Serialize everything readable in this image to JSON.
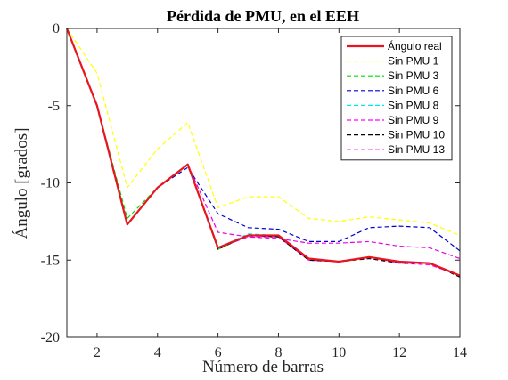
{
  "chart_data": {
    "type": "line",
    "title": "Pérdida de PMU, en el EEH",
    "xlabel": "Número de barras",
    "ylabel": "Ángulo [grados]",
    "xlim": [
      1,
      14
    ],
    "ylim": [
      -20,
      0
    ],
    "xticks": [
      2,
      4,
      6,
      8,
      10,
      12,
      14
    ],
    "yticks": [
      0,
      -5,
      -10,
      -15,
      -20
    ],
    "grid": false,
    "legend_position": "top-right",
    "x": [
      1,
      2,
      3,
      4,
      5,
      6,
      7,
      8,
      9,
      10,
      11,
      12,
      13,
      14
    ],
    "series": [
      {
        "name": "Ángulo real",
        "color": "#e8141e",
        "style": "solid",
        "width": 2.2,
        "values": [
          0,
          -5.0,
          -12.7,
          -10.3,
          -8.8,
          -14.2,
          -13.4,
          -13.4,
          -14.9,
          -15.1,
          -14.8,
          -15.1,
          -15.2,
          -16.0
        ]
      },
      {
        "name": "Sin PMU 1",
        "color": "#ffff00",
        "style": "dashed",
        "width": 1.2,
        "values": [
          0,
          -2.9,
          -10.3,
          -7.8,
          -6.1,
          -11.6,
          -10.9,
          -10.9,
          -12.3,
          -12.5,
          -12.2,
          -12.4,
          -12.6,
          -13.4
        ]
      },
      {
        "name": "Sin PMU 3",
        "color": "#00dd00",
        "style": "dashed",
        "width": 1.2,
        "values": [
          0,
          -5.0,
          -12.3,
          -10.3,
          -8.8,
          -14.3,
          -13.4,
          -13.4,
          -14.9,
          -15.1,
          -14.8,
          -15.1,
          -15.2,
          -16.0
        ]
      },
      {
        "name": "Sin PMU 6",
        "color": "#0000cc",
        "style": "dashed",
        "width": 1.2,
        "values": [
          0,
          -5.0,
          -12.7,
          -10.3,
          -9.0,
          -12.0,
          -12.9,
          -13.0,
          -13.8,
          -13.8,
          -12.9,
          -12.8,
          -12.9,
          -14.4
        ]
      },
      {
        "name": "Sin PMU 8",
        "color": "#00e5e5",
        "style": "dashed",
        "width": 1.2,
        "values": [
          0,
          -5.0,
          -12.7,
          -10.3,
          -8.8,
          -14.2,
          -13.3,
          -13.4,
          -14.9,
          -15.1,
          -14.8,
          -15.1,
          -15.2,
          -16.0
        ]
      },
      {
        "name": "Sin PMU 9",
        "color": "#ff00ff",
        "style": "dashed",
        "width": 1.2,
        "values": [
          0,
          -5.0,
          -12.7,
          -10.3,
          -8.8,
          -14.2,
          -13.5,
          -13.5,
          -15.0,
          -15.1,
          -14.8,
          -15.2,
          -15.3,
          -16.0
        ]
      },
      {
        "name": "Sin PMU 10",
        "color": "#000000",
        "style": "dashed",
        "width": 1.2,
        "values": [
          0,
          -5.0,
          -12.7,
          -10.3,
          -8.8,
          -14.3,
          -13.4,
          -13.5,
          -15.0,
          -15.1,
          -14.9,
          -15.2,
          -15.2,
          -16.1
        ]
      },
      {
        "name": "Sin PMU 13",
        "color": "#e600e6",
        "style": "dashed",
        "width": 1.2,
        "values": [
          0,
          -5.0,
          -12.7,
          -10.3,
          -8.8,
          -13.2,
          -13.5,
          -13.6,
          -13.9,
          -13.9,
          -13.8,
          -14.1,
          -14.2,
          -14.9
        ]
      }
    ]
  }
}
